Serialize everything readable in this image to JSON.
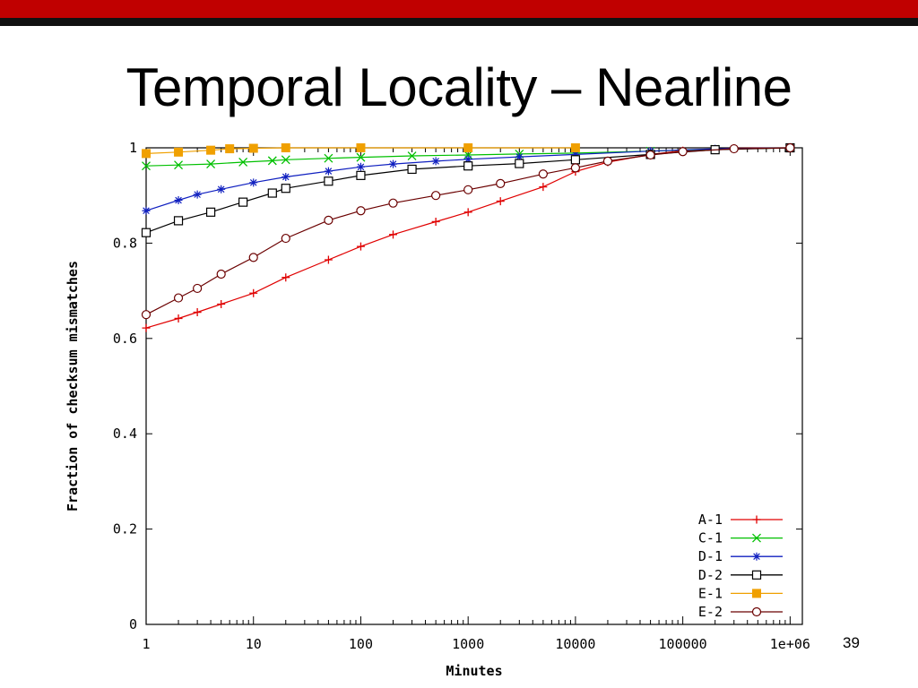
{
  "slide": {
    "title": "Temporal Locality – Nearline",
    "page_number": "39",
    "colors": {
      "top_bar": "#c00000",
      "bottom_bar": "#111111"
    }
  },
  "chart_data": {
    "type": "line",
    "xlabel": "Minutes",
    "ylabel": "Fraction of checksum mismatches",
    "xscale": "log",
    "xlim": [
      1,
      1300000
    ],
    "ylim": [
      0,
      1
    ],
    "xticks": [
      {
        "value": 1,
        "label": "1"
      },
      {
        "value": 10,
        "label": "10"
      },
      {
        "value": 100,
        "label": "100"
      },
      {
        "value": 1000,
        "label": "1000"
      },
      {
        "value": 10000,
        "label": "10000"
      },
      {
        "value": 100000,
        "label": "100000"
      },
      {
        "value": 1000000,
        "label": "1e+06"
      }
    ],
    "yticks": [
      {
        "value": 0,
        "label": "0"
      },
      {
        "value": 0.2,
        "label": "0.2"
      },
      {
        "value": 0.4,
        "label": "0.4"
      },
      {
        "value": 0.6,
        "label": "0.6"
      },
      {
        "value": 0.8,
        "label": "0.8"
      },
      {
        "value": 1,
        "label": "1"
      }
    ],
    "grid": false,
    "legend_position": "bottom-right",
    "series": [
      {
        "name": "A-1",
        "color": "#e00000",
        "marker": "plus",
        "points": [
          [
            1,
            0.622
          ],
          [
            2,
            0.642
          ],
          [
            3,
            0.655
          ],
          [
            5,
            0.672
          ],
          [
            10,
            0.695
          ],
          [
            20,
            0.728
          ],
          [
            50,
            0.765
          ],
          [
            100,
            0.793
          ],
          [
            200,
            0.818
          ],
          [
            500,
            0.845
          ],
          [
            1000,
            0.865
          ],
          [
            2000,
            0.888
          ],
          [
            5000,
            0.918
          ],
          [
            10000,
            0.95
          ],
          [
            20000,
            0.97
          ],
          [
            50000,
            0.986
          ],
          [
            100000,
            0.994
          ],
          [
            300000,
            0.999
          ],
          [
            1000000,
            1.0
          ]
        ]
      },
      {
        "name": "C-1",
        "color": "#00c000",
        "marker": "x",
        "points": [
          [
            1,
            0.962
          ],
          [
            2,
            0.964
          ],
          [
            4,
            0.966
          ],
          [
            8,
            0.97
          ],
          [
            15,
            0.973
          ],
          [
            20,
            0.975
          ],
          [
            50,
            0.978
          ],
          [
            100,
            0.98
          ],
          [
            300,
            0.983
          ],
          [
            1000,
            0.985
          ],
          [
            3000,
            0.987
          ],
          [
            10000,
            0.989
          ],
          [
            50000,
            0.993
          ],
          [
            200000,
            0.997
          ],
          [
            1000000,
            1.0
          ]
        ]
      },
      {
        "name": "D-1",
        "color": "#1020c0",
        "marker": "star",
        "points": [
          [
            1,
            0.868
          ],
          [
            2,
            0.89
          ],
          [
            3,
            0.902
          ],
          [
            5,
            0.913
          ],
          [
            10,
            0.927
          ],
          [
            20,
            0.939
          ],
          [
            50,
            0.951
          ],
          [
            100,
            0.96
          ],
          [
            200,
            0.966
          ],
          [
            500,
            0.972
          ],
          [
            1000,
            0.976
          ],
          [
            3000,
            0.981
          ],
          [
            10000,
            0.986
          ],
          [
            50000,
            0.993
          ],
          [
            200000,
            0.998
          ],
          [
            1000000,
            1.0
          ]
        ]
      },
      {
        "name": "D-2",
        "color": "#000000",
        "marker": "square",
        "points": [
          [
            1,
            0.822
          ],
          [
            2,
            0.847
          ],
          [
            4,
            0.865
          ],
          [
            8,
            0.886
          ],
          [
            15,
            0.905
          ],
          [
            20,
            0.915
          ],
          [
            50,
            0.93
          ],
          [
            100,
            0.942
          ],
          [
            300,
            0.955
          ],
          [
            1000,
            0.962
          ],
          [
            3000,
            0.967
          ],
          [
            10000,
            0.975
          ],
          [
            50000,
            0.986
          ],
          [
            200000,
            0.996
          ],
          [
            1000000,
            1.0
          ]
        ]
      },
      {
        "name": "E-1",
        "color": "#f0a000",
        "marker": "filled-square",
        "points": [
          [
            1,
            0.988
          ],
          [
            2,
            0.991
          ],
          [
            4,
            0.995
          ],
          [
            6,
            0.998
          ],
          [
            10,
            0.999
          ],
          [
            20,
            1.0
          ],
          [
            100,
            1.0
          ],
          [
            1000,
            1.0
          ],
          [
            10000,
            1.0
          ]
        ]
      },
      {
        "name": "E-2",
        "color": "#6b0000",
        "marker": "circle",
        "points": [
          [
            1,
            0.65
          ],
          [
            2,
            0.685
          ],
          [
            3,
            0.705
          ],
          [
            5,
            0.735
          ],
          [
            10,
            0.77
          ],
          [
            20,
            0.81
          ],
          [
            50,
            0.848
          ],
          [
            100,
            0.868
          ],
          [
            200,
            0.884
          ],
          [
            500,
            0.9
          ],
          [
            1000,
            0.912
          ],
          [
            2000,
            0.925
          ],
          [
            5000,
            0.945
          ],
          [
            10000,
            0.958
          ],
          [
            20000,
            0.972
          ],
          [
            50000,
            0.985
          ],
          [
            100000,
            0.992
          ],
          [
            300000,
            0.998
          ],
          [
            1000000,
            1.0
          ]
        ]
      }
    ]
  }
}
